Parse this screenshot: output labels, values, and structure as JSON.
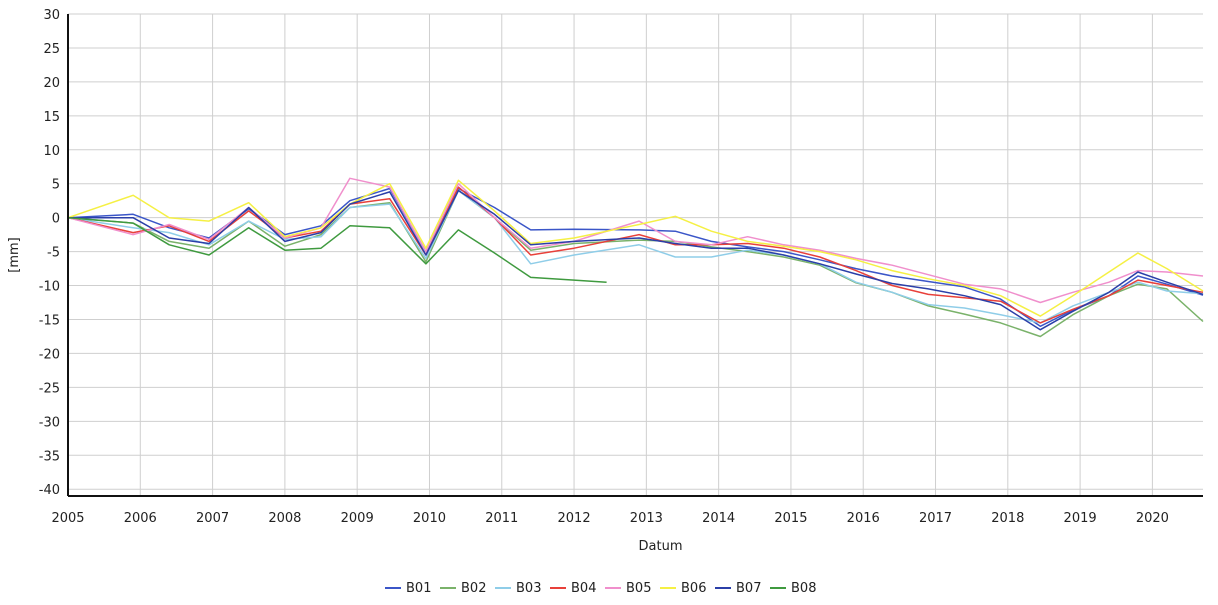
{
  "chart_data": {
    "type": "line",
    "title": "",
    "xlabel": "Datum",
    "ylabel": "[mm]",
    "xlim": [
      2005,
      2020.7
    ],
    "ylim": [
      -41,
      30
    ],
    "xticks": [
      "2005",
      "2006",
      "2007",
      "2008",
      "2009",
      "2010",
      "2011",
      "2012",
      "2013",
      "2014",
      "2015",
      "2016",
      "2017",
      "2018",
      "2019",
      "2020"
    ],
    "yticks": [
      "30",
      "25",
      "20",
      "15",
      "10",
      "5",
      "0",
      "-5",
      "-10",
      "-15",
      "-20",
      "-25",
      "-30",
      "-35",
      "-40"
    ],
    "grid": true,
    "legend": "bottom",
    "series": [
      {
        "name": "B01",
        "color": "#3b56c8",
        "x": [
          2005,
          2005.9,
          2006.4,
          2006.95,
          2007.5,
          2008,
          2008.5,
          2008.9,
          2009.45,
          2009.95,
          2010.4,
          2010.9,
          2011.4,
          2012,
          2012.9,
          2013.4,
          2013.9,
          2014.4,
          2014.9,
          2015.4,
          2015.9,
          2016.4,
          2016.9,
          2017.4,
          2017.9,
          2018.45,
          2018.9,
          2019.4,
          2019.8,
          2020.2,
          2020.7
        ],
        "y": [
          0,
          0.5,
          -1.5,
          -3,
          1.3,
          -2.5,
          -1.2,
          2.5,
          4.3,
          -5,
          4.3,
          1.5,
          -1.8,
          -1.7,
          -1.8,
          -2,
          -3.5,
          -4.3,
          -5,
          -6.2,
          -7.5,
          -8.6,
          -9.4,
          -10.2,
          -12,
          -16,
          -13.6,
          -11.5,
          -8.6,
          -9.8,
          -11.4
        ]
      },
      {
        "name": "B02",
        "color": "#7ab26a",
        "x": [
          2005,
          2005.9,
          2006.4,
          2006.95,
          2007.5,
          2008,
          2008.5,
          2008.9,
          2009.45,
          2009.95,
          2010.4,
          2010.9,
          2011.4,
          2012,
          2012.9,
          2013.4,
          2013.9,
          2014.4,
          2014.9,
          2015.4,
          2015.9,
          2016.4,
          2016.9,
          2017.4,
          2017.9,
          2018.45,
          2018.9,
          2019.4,
          2019.8,
          2020.2,
          2020.7
        ],
        "y": [
          0,
          -0.8,
          -3.5,
          -4.5,
          -0.5,
          -4.2,
          -2.5,
          1.5,
          2.2,
          -6.5,
          4,
          0,
          -4.8,
          -3.8,
          -3.3,
          -3.5,
          -4.3,
          -5,
          -5.8,
          -7,
          -9.6,
          -11,
          -13,
          -14.2,
          -15.5,
          -17.5,
          -14.3,
          -11.5,
          -9.8,
          -10.5,
          -15.3
        ]
      },
      {
        "name": "B03",
        "color": "#8fcde8",
        "x": [
          2005,
          2005.9,
          2006.4,
          2006.95,
          2007.5,
          2008,
          2008.5,
          2008.9,
          2009.45,
          2009.95,
          2010.4,
          2010.9,
          2011.4,
          2012,
          2012.9,
          2013.4,
          2013.9,
          2014.4,
          2014.9,
          2015.4,
          2015.9,
          2016.4,
          2016.9,
          2017.4,
          2017.9,
          2018.45,
          2018.9,
          2019.4,
          2019.8,
          2020.2,
          2020.7
        ],
        "y": [
          0,
          -1.5,
          -2.2,
          -4,
          -0.5,
          -3.2,
          -2.8,
          1.5,
          2,
          -6,
          4,
          0,
          -6.8,
          -5.5,
          -4,
          -5.8,
          -5.8,
          -4.8,
          -5.5,
          -6.8,
          -9.5,
          -11,
          -12.8,
          -13.3,
          -14.3,
          -15.5,
          -13,
          -11,
          -9.5,
          -10.8,
          -11.2
        ]
      },
      {
        "name": "B04",
        "color": "#e8403a",
        "x": [
          2005,
          2005.9,
          2006.4,
          2006.95,
          2007.5,
          2008,
          2008.5,
          2008.9,
          2009.45,
          2009.95,
          2010.4,
          2010.9,
          2011.4,
          2012,
          2012.9,
          2013.4,
          2013.9,
          2014.4,
          2014.9,
          2015.4,
          2015.9,
          2016.4,
          2016.9,
          2017.4,
          2017.9,
          2018.45,
          2018.9,
          2019.4,
          2019.8,
          2020.2,
          2020.7
        ],
        "y": [
          0,
          -2.2,
          -1.2,
          -3.5,
          1,
          -3,
          -2,
          2,
          2.8,
          -5.5,
          4.5,
          0,
          -5.5,
          -4.5,
          -2.5,
          -4,
          -4,
          -3.8,
          -4.5,
          -5.8,
          -7.8,
          -10,
          -11.3,
          -11.8,
          -12.3,
          -15.5,
          -13.5,
          -11.5,
          -9.2,
          -10,
          -11
        ]
      },
      {
        "name": "B05",
        "color": "#f08fcc",
        "x": [
          2005,
          2005.9,
          2006.4,
          2006.95,
          2007.5,
          2008,
          2008.5,
          2008.9,
          2009.45,
          2009.95,
          2010.4,
          2010.9,
          2011.4,
          2012,
          2012.9,
          2013.4,
          2013.9,
          2014.4,
          2014.9,
          2015.4,
          2015.9,
          2016.4,
          2016.9,
          2017.4,
          2017.9,
          2018.45,
          2018.9,
          2019.4,
          2019.8,
          2020.2,
          2020.7
        ],
        "y": [
          0,
          -2.5,
          -1,
          -3.2,
          1.5,
          -3,
          -1.5,
          5.8,
          4.5,
          -5,
          5,
          0,
          -4.5,
          -3.5,
          -0.5,
          -3.5,
          -4,
          -2.8,
          -4,
          -4.8,
          -6,
          -7,
          -8.4,
          -9.8,
          -10.5,
          -12.5,
          -11,
          -9.5,
          -7.8,
          -8,
          -8.6
        ]
      },
      {
        "name": "B06",
        "color": "#f5f044",
        "x": [
          2005,
          2005.9,
          2006.4,
          2006.95,
          2007.5,
          2008,
          2008.5,
          2008.9,
          2009.45,
          2009.95,
          2010.4,
          2010.9,
          2011.4,
          2012,
          2012.9,
          2013.4,
          2013.9,
          2014.4,
          2014.9,
          2015.4,
          2015.9,
          2016.4,
          2016.9,
          2017.4,
          2017.9,
          2018.45,
          2018.9,
          2019.4,
          2019.8,
          2020.2,
          2020.7
        ],
        "y": [
          0,
          3.3,
          0,
          -0.5,
          2.2,
          -2.8,
          -1.5,
          2,
          5,
          -4.5,
          5.5,
          1,
          -3.8,
          -3,
          -1,
          0.2,
          -2,
          -3.5,
          -4.2,
          -5,
          -6.2,
          -7.8,
          -9,
          -10,
          -11.5,
          -14.5,
          -11.5,
          -8,
          -5.2,
          -7.5,
          -10.8
        ]
      },
      {
        "name": "B07",
        "color": "#2b3fa8",
        "x": [
          2005,
          2005.9,
          2006.4,
          2006.95,
          2007.5,
          2008,
          2008.5,
          2008.9,
          2009.45,
          2009.95,
          2010.4,
          2010.9,
          2011.4,
          2012,
          2012.9,
          2013.4,
          2013.9,
          2014.4,
          2014.9,
          2015.4,
          2015.9,
          2016.4,
          2016.9,
          2017.4,
          2017.9,
          2018.45,
          2018.9,
          2019.4,
          2019.8,
          2020.2,
          2020.7
        ],
        "y": [
          0,
          0,
          -3,
          -3.8,
          1.5,
          -3.5,
          -2.2,
          2,
          3.8,
          -5.5,
          4,
          0.5,
          -4,
          -3.5,
          -3,
          -3.8,
          -4.5,
          -4.5,
          -5.5,
          -6.8,
          -8.3,
          -9.7,
          -10.5,
          -11.5,
          -12.8,
          -16.5,
          -13.8,
          -11,
          -8,
          -9.5,
          -11.3
        ]
      },
      {
        "name": "B08",
        "color": "#3f9a3f",
        "x": [
          2005,
          2005.9,
          2006.4,
          2006.95,
          2007.5,
          2008,
          2008.5,
          2008.9,
          2009.45,
          2009.95,
          2010.4,
          2010.9,
          2011.4,
          2012,
          2012.45
        ],
        "y": [
          0,
          -0.8,
          -4,
          -5.5,
          -1.5,
          -4.8,
          -4.5,
          -1.2,
          -1.5,
          -6.8,
          -1.8,
          -5.2,
          -8.8,
          -9.2,
          -9.5
        ]
      }
    ]
  }
}
